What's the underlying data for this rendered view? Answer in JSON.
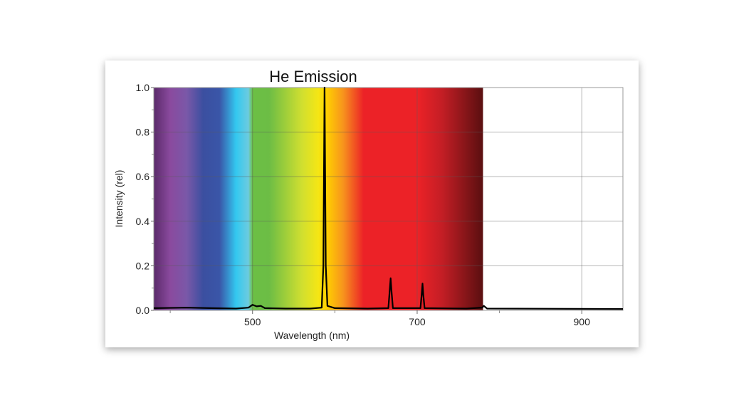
{
  "chart_data": {
    "type": "line",
    "title": "He Emission",
    "xlabel": "Wavelength (nm)",
    "ylabel": "Intensity (rel)",
    "xlim": [
      380,
      950
    ],
    "ylim": [
      0,
      1.0
    ],
    "x_ticks": [
      500,
      700,
      900
    ],
    "x_minor_ticks": [
      400,
      600,
      800
    ],
    "y_ticks": [
      "0.0",
      "0.2",
      "0.4",
      "0.6",
      "0.8",
      "1.0"
    ],
    "y_tick_values": [
      0,
      0.2,
      0.4,
      0.6,
      0.8,
      1.0
    ],
    "grid": true,
    "background_spectrum_range": [
      380,
      780
    ],
    "series": [
      {
        "color": "#000000",
        "points": [
          [
            380,
            0.01
          ],
          [
            420,
            0.012
          ],
          [
            450,
            0.01
          ],
          [
            480,
            0.008
          ],
          [
            495,
            0.012
          ],
          [
            500,
            0.025
          ],
          [
            505,
            0.018
          ],
          [
            510,
            0.02
          ],
          [
            515,
            0.01
          ],
          [
            540,
            0.008
          ],
          [
            570,
            0.008
          ],
          [
            584,
            0.012
          ],
          [
            586,
            0.2
          ],
          [
            587.5,
            1.0
          ],
          [
            589,
            0.2
          ],
          [
            591,
            0.02
          ],
          [
            600,
            0.01
          ],
          [
            640,
            0.008
          ],
          [
            665,
            0.01
          ],
          [
            666.5,
            0.08
          ],
          [
            667.8,
            0.144
          ],
          [
            669,
            0.08
          ],
          [
            670.5,
            0.01
          ],
          [
            704,
            0.01
          ],
          [
            705.5,
            0.07
          ],
          [
            706.5,
            0.12
          ],
          [
            707.5,
            0.07
          ],
          [
            709,
            0.01
          ],
          [
            760,
            0.008
          ],
          [
            779,
            0.012
          ],
          [
            781,
            0.02
          ],
          [
            785,
            0.008
          ],
          [
            950,
            0.006
          ]
        ]
      }
    ]
  }
}
